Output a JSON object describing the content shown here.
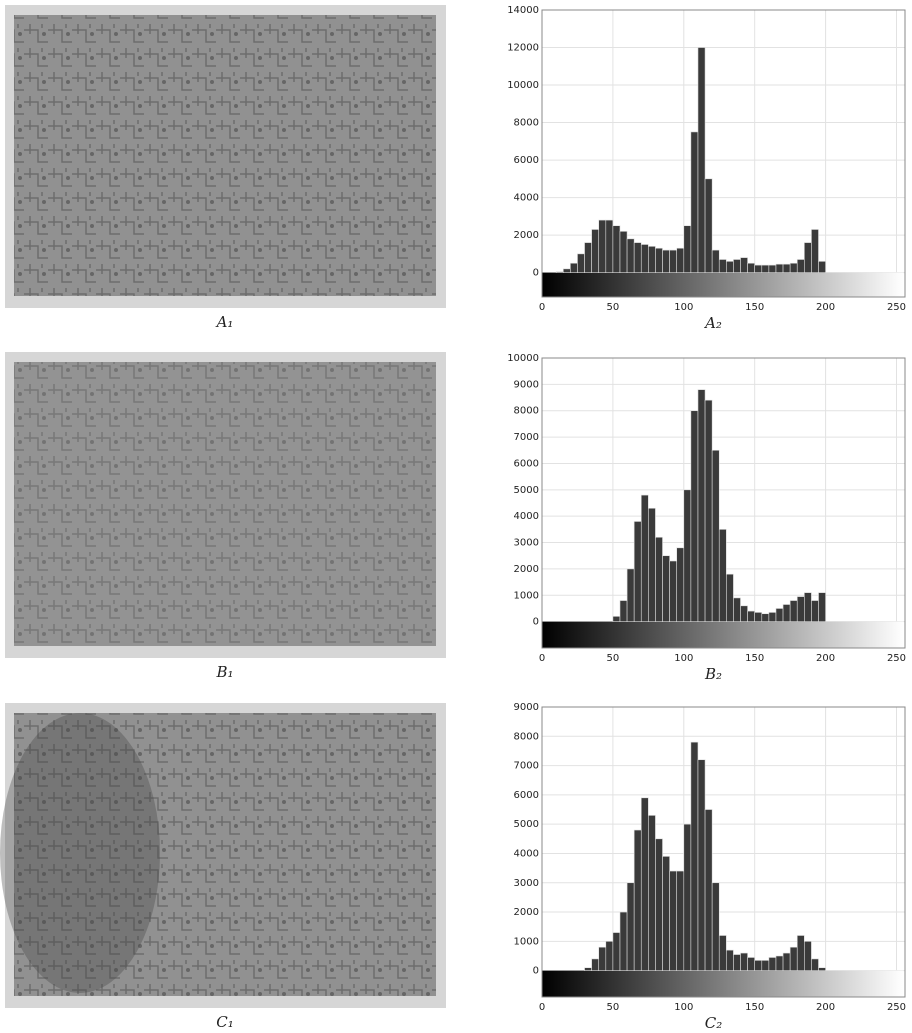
{
  "images": [
    {
      "caption": "A₁"
    },
    {
      "caption": "B₁"
    },
    {
      "caption": "C₁"
    }
  ],
  "chart_data": [
    {
      "type": "histogram",
      "caption": "A₂",
      "color": "#3a3a3a",
      "grid": true,
      "bins": [
        0,
        5,
        10,
        15,
        20,
        25,
        30,
        35,
        40,
        45,
        50,
        55,
        60,
        65,
        70,
        75,
        80,
        85,
        90,
        95,
        100,
        105,
        110,
        115,
        120,
        125,
        130,
        135,
        140,
        145,
        150,
        155,
        160,
        165,
        170,
        175,
        180,
        185,
        190,
        195,
        200,
        205,
        210,
        215,
        220,
        225,
        230,
        235,
        240,
        245,
        250,
        255
      ],
      "values": [
        0,
        0,
        50,
        200,
        500,
        1000,
        1600,
        2300,
        2800,
        2800,
        2500,
        2200,
        1800,
        1600,
        1500,
        1400,
        1300,
        1200,
        1200,
        1300,
        2500,
        7500,
        12000,
        5000,
        1200,
        700,
        600,
        700,
        800,
        500,
        400,
        400,
        400,
        450,
        450,
        500,
        700,
        1600,
        2300,
        600,
        0,
        0,
        0,
        0,
        0,
        0,
        0,
        0,
        0,
        0,
        0
      ],
      "xlim": [
        0,
        256
      ],
      "xticks": [
        0,
        50,
        100,
        150,
        200,
        250
      ],
      "ylim": [
        -1300,
        14000
      ],
      "yticks": [
        0,
        2000,
        4000,
        6000,
        8000,
        10000,
        12000,
        14000
      ]
    },
    {
      "type": "histogram",
      "caption": "B₂",
      "color": "#3a3a3a",
      "grid": true,
      "bins": [
        0,
        5,
        10,
        15,
        20,
        25,
        30,
        35,
        40,
        45,
        50,
        55,
        60,
        65,
        70,
        75,
        80,
        85,
        90,
        95,
        100,
        105,
        110,
        115,
        120,
        125,
        130,
        135,
        140,
        145,
        150,
        155,
        160,
        165,
        170,
        175,
        180,
        185,
        190,
        195,
        200,
        205,
        210,
        215,
        220,
        225,
        230,
        235,
        240,
        245,
        250,
        255
      ],
      "values": [
        0,
        0,
        0,
        0,
        0,
        0,
        0,
        0,
        0,
        0,
        200,
        800,
        2000,
        3800,
        4800,
        4300,
        3200,
        2500,
        2300,
        2800,
        5000,
        8000,
        8800,
        8400,
        6500,
        3500,
        1800,
        900,
        600,
        400,
        350,
        300,
        350,
        500,
        650,
        800,
        950,
        1100,
        800,
        1100,
        0,
        0,
        0,
        0,
        0,
        0,
        0,
        0,
        0,
        0,
        0
      ],
      "xlim": [
        0,
        256
      ],
      "xticks": [
        0,
        50,
        100,
        150,
        200,
        250
      ],
      "ylim": [
        -1000,
        10000
      ],
      "yticks": [
        0,
        1000,
        2000,
        3000,
        4000,
        5000,
        6000,
        7000,
        8000,
        9000,
        10000
      ]
    },
    {
      "type": "histogram",
      "caption": "C₂",
      "color": "#3a3a3a",
      "grid": true,
      "bins": [
        0,
        5,
        10,
        15,
        20,
        25,
        30,
        35,
        40,
        45,
        50,
        55,
        60,
        65,
        70,
        75,
        80,
        85,
        90,
        95,
        100,
        105,
        110,
        115,
        120,
        125,
        130,
        135,
        140,
        145,
        150,
        155,
        160,
        165,
        170,
        175,
        180,
        185,
        190,
        195,
        200,
        205,
        210,
        215,
        220,
        225,
        230,
        235,
        240,
        245,
        250,
        255
      ],
      "values": [
        0,
        0,
        0,
        0,
        0,
        0,
        100,
        400,
        800,
        1000,
        1300,
        2000,
        3000,
        4800,
        5900,
        5300,
        4500,
        3900,
        3400,
        3400,
        5000,
        7800,
        7200,
        5500,
        3000,
        1200,
        700,
        550,
        600,
        450,
        350,
        350,
        450,
        500,
        600,
        800,
        1200,
        1000,
        400,
        100,
        0,
        0,
        0,
        0,
        0,
        0,
        0,
        0,
        0,
        0,
        0
      ],
      "xlim": [
        0,
        256
      ],
      "xticks": [
        0,
        50,
        100,
        150,
        200,
        250
      ],
      "ylim": [
        -900,
        9000
      ],
      "yticks": [
        0,
        1000,
        2000,
        3000,
        4000,
        5000,
        6000,
        7000,
        8000,
        9000
      ]
    }
  ]
}
